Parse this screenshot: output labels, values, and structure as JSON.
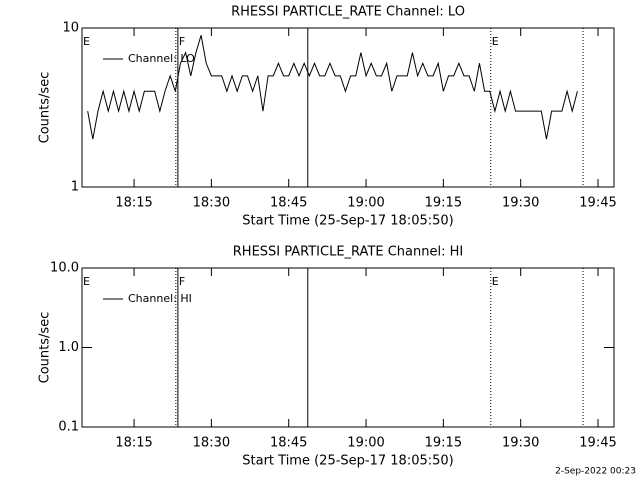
{
  "chart_data": [
    {
      "type": "line",
      "title": "RHESSI PARTICLE_RATE Channel: LO",
      "ylabel": "Counts/sec",
      "xlabel": "Start Time (25-Sep-17 18:05:50)",
      "log_y": true,
      "ylim": [
        1,
        10
      ],
      "yticks": [
        1,
        10
      ],
      "xlim": [
        4.9,
        108.1
      ],
      "xticks": [
        {
          "value": 15,
          "label": "18:15"
        },
        {
          "value": 30,
          "label": "18:30"
        },
        {
          "value": 45,
          "label": "18:45"
        },
        {
          "value": 60,
          "label": "19:00"
        },
        {
          "value": 75,
          "label": "19:15"
        },
        {
          "value": 90,
          "label": "19:30"
        },
        {
          "value": 105,
          "label": "19:45"
        }
      ],
      "x": [
        6,
        7,
        8,
        9,
        10,
        11,
        12,
        13,
        14,
        15,
        16,
        17,
        18,
        19,
        20,
        21,
        22,
        23,
        24,
        25,
        26,
        27,
        28,
        29,
        30,
        31,
        32,
        33,
        34,
        35,
        36,
        37,
        38,
        39,
        40,
        41,
        42,
        43,
        44,
        45,
        46,
        47,
        48,
        49,
        50,
        51,
        52,
        53,
        54,
        55,
        56,
        57,
        58,
        59,
        60,
        61,
        62,
        63,
        64,
        65,
        66,
        67,
        68,
        69,
        70,
        71,
        72,
        73,
        74,
        75,
        76,
        77,
        78,
        79,
        80,
        81,
        82,
        83,
        84,
        85,
        86,
        87,
        88,
        89,
        90,
        91,
        92,
        93,
        94,
        95,
        96,
        97,
        98,
        99,
        100,
        101
      ],
      "series": [
        {
          "name": "Channel: LO",
          "color": "#000000",
          "values": [
            3,
            2,
            3,
            4,
            3,
            4,
            3,
            4,
            3,
            4,
            3,
            4,
            4,
            4,
            3,
            4,
            5,
            4,
            6,
            7,
            5,
            7,
            9,
            6,
            5,
            5,
            5,
            4,
            5,
            4,
            5,
            5,
            4,
            5,
            3,
            5,
            5,
            6,
            5,
            5,
            6,
            5,
            6,
            5,
            6,
            5,
            5,
            6,
            5,
            5,
            4,
            5,
            5,
            7,
            5,
            6,
            5,
            5,
            6,
            4,
            5,
            5,
            5,
            7,
            5,
            6,
            5,
            5,
            6,
            4,
            5,
            5,
            6,
            5,
            5,
            4,
            6,
            4,
            4,
            3,
            4,
            3,
            4,
            3,
            3,
            3,
            3,
            3,
            3,
            2,
            3,
            3,
            3,
            4,
            3,
            4
          ]
        }
      ],
      "vlines": [
        {
          "x": 23.1,
          "style": "dotted"
        },
        {
          "x": 23.5,
          "style": "solid"
        },
        {
          "x": 48.7,
          "style": "solid"
        },
        {
          "x": 84.2,
          "style": "dotted"
        },
        {
          "x": 102.1,
          "style": "dotted"
        }
      ],
      "flags": [
        {
          "label": "E",
          "x": 4.9
        },
        {
          "label": "F",
          "x": 23.5
        },
        {
          "label": "E",
          "x": 84.2
        }
      ]
    },
    {
      "type": "line",
      "title": "RHESSI PARTICLE_RATE Channel: HI",
      "ylabel": "Counts/sec",
      "xlabel": "Start Time (25-Sep-17 18:05:50)",
      "log_y": true,
      "ylim": [
        0.1,
        10
      ],
      "yticks": [
        0.1,
        {
          "value": 1,
          "label": "1.0"
        },
        {
          "value": 10,
          "label": "10.0"
        }
      ],
      "xlim": [
        4.9,
        108.1
      ],
      "xticks": [
        {
          "value": 15,
          "label": "18:15"
        },
        {
          "value": 30,
          "label": "18:30"
        },
        {
          "value": 45,
          "label": "18:45"
        },
        {
          "value": 60,
          "label": "19:00"
        },
        {
          "value": 75,
          "label": "19:15"
        },
        {
          "value": 90,
          "label": "19:30"
        },
        {
          "value": 105,
          "label": "19:45"
        }
      ],
      "x": [],
      "series": [
        {
          "name": "Channel: HI",
          "color": "#000000",
          "values": []
        }
      ],
      "vlines": [
        {
          "x": 23.1,
          "style": "dotted"
        },
        {
          "x": 23.5,
          "style": "solid"
        },
        {
          "x": 48.7,
          "style": "solid"
        },
        {
          "x": 84.2,
          "style": "dotted"
        },
        {
          "x": 102.1,
          "style": "dotted"
        }
      ],
      "flags": [
        {
          "label": "E",
          "x": 4.9
        },
        {
          "label": "F",
          "x": 23.5
        },
        {
          "label": "E",
          "x": 84.2
        }
      ]
    }
  ],
  "footer": "2-Sep-2022 00:23"
}
